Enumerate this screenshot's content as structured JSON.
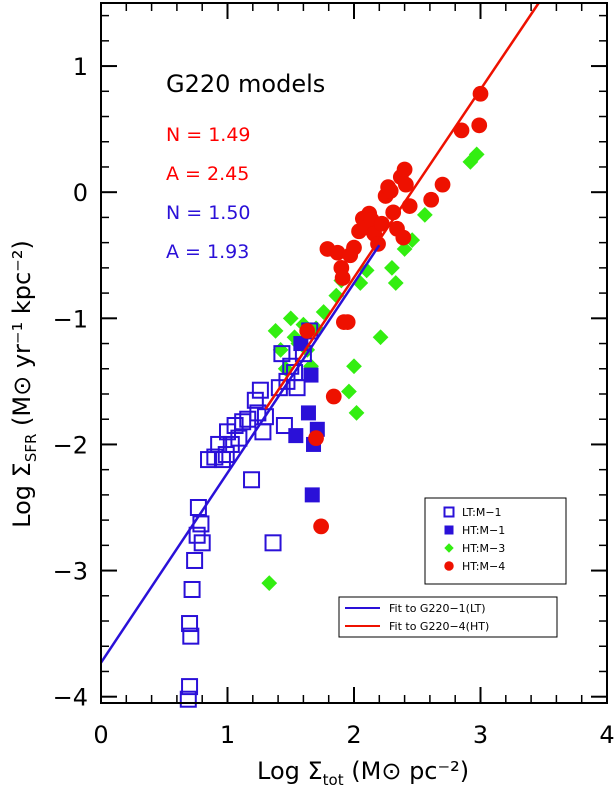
{
  "chart_data": {
    "type": "scatter",
    "title": "G220 models",
    "xlabel": {
      "prefix": "Log Σ",
      "sub": "tot",
      "unit": " (M⊙ pc⁻²)"
    },
    "ylabel": {
      "prefix": "Log Σ",
      "sub": "SFR",
      "unit": " (M⊙ yr⁻¹ kpc⁻²)"
    },
    "xlim": [
      0,
      4
    ],
    "ylim": [
      -4.05,
      1.5
    ],
    "x_ticks": [
      0,
      1,
      2,
      3,
      4
    ],
    "y_ticks": [
      -4,
      -3,
      -2,
      -1,
      0,
      1
    ],
    "x_tick_labels": [
      "0",
      "1",
      "2",
      "3",
      "4"
    ],
    "y_tick_labels": [
      "−4",
      "−3",
      "−2",
      "−1",
      "0",
      "1"
    ],
    "fit_params": [
      {
        "text": "N = 1.49",
        "color": "#ff0000"
      },
      {
        "text": "A = 2.45",
        "color": "#ff0000"
      },
      {
        "text": "N = 1.50",
        "color": "#2a10d8"
      },
      {
        "text": "A = 1.93",
        "color": "#2a10d8"
      }
    ],
    "legend_markers": [
      {
        "label": "LT:M−1",
        "marker": "open-square",
        "color": "#2a10d8"
      },
      {
        "label": "HT:M−1",
        "marker": "filled-square",
        "color": "#2a10d8"
      },
      {
        "label": "HT:M−3",
        "marker": "diamond",
        "color": "#33ee11"
      },
      {
        "label": "HT:M−4",
        "marker": "circle",
        "color": "#ee1100"
      }
    ],
    "legend_lines": [
      {
        "label": "Fit to G220−1(LT)",
        "color": "#2a10d8"
      },
      {
        "label": "Fit to G220−4(HT)",
        "color": "#ee1100"
      }
    ],
    "fits": [
      {
        "x": [
          0,
          2.2
        ],
        "y": [
          -3.73,
          -0.42
        ],
        "color": "#2a10d8"
      },
      {
        "x": [
          1.3,
          3.46
        ],
        "y": [
          -1.72,
          1.5
        ],
        "color": "#ee1100"
      }
    ],
    "series": [
      {
        "marker": "diamond",
        "color": "#33ee11",
        "points": [
          [
            1.33,
            -3.1
          ],
          [
            1.38,
            -1.1
          ],
          [
            1.42,
            -1.25
          ],
          [
            1.46,
            -1.4
          ],
          [
            1.5,
            -1.0
          ],
          [
            1.53,
            -1.15
          ],
          [
            1.56,
            -1.2
          ],
          [
            1.6,
            -1.05
          ],
          [
            1.63,
            -1.25
          ],
          [
            1.66,
            -1.38
          ],
          [
            1.7,
            -1.08
          ],
          [
            1.76,
            -0.95
          ],
          [
            1.86,
            -0.82
          ],
          [
            1.9,
            -0.7
          ],
          [
            1.96,
            -1.58
          ],
          [
            2.0,
            -1.38
          ],
          [
            2.02,
            -1.75
          ],
          [
            2.05,
            -0.72
          ],
          [
            2.1,
            -0.62
          ],
          [
            2.21,
            -1.15
          ],
          [
            2.3,
            -0.6
          ],
          [
            2.33,
            -0.72
          ],
          [
            2.4,
            -0.45
          ],
          [
            2.46,
            -0.38
          ],
          [
            2.56,
            -0.18
          ],
          [
            2.92,
            0.24
          ],
          [
            2.97,
            0.3
          ]
        ]
      },
      {
        "marker": "open-square",
        "color": "#2a10d8",
        "points": [
          [
            0.69,
            -4.02
          ],
          [
            0.7,
            -3.92
          ],
          [
            0.7,
            -3.42
          ],
          [
            0.71,
            -3.52
          ],
          [
            0.72,
            -3.15
          ],
          [
            0.74,
            -2.92
          ],
          [
            0.76,
            -2.72
          ],
          [
            0.77,
            -2.5
          ],
          [
            0.79,
            -2.63
          ],
          [
            0.8,
            -2.78
          ],
          [
            0.85,
            -2.12
          ],
          [
            0.9,
            -2.1
          ],
          [
            0.93,
            -2.0
          ],
          [
            0.96,
            -2.12
          ],
          [
            0.99,
            -2.08
          ],
          [
            1.0,
            -1.9
          ],
          [
            1.03,
            -2.0
          ],
          [
            1.06,
            -1.85
          ],
          [
            1.09,
            -1.95
          ],
          [
            1.12,
            -1.82
          ],
          [
            1.16,
            -1.8
          ],
          [
            1.19,
            -2.28
          ],
          [
            1.22,
            -1.65
          ],
          [
            1.24,
            -1.75
          ],
          [
            1.26,
            -1.57
          ],
          [
            1.28,
            -1.9
          ],
          [
            1.3,
            -1.78
          ],
          [
            1.36,
            -2.78
          ],
          [
            1.41,
            -1.55
          ],
          [
            1.43,
            -1.28
          ],
          [
            1.45,
            -1.85
          ],
          [
            1.47,
            -1.5
          ],
          [
            1.5,
            -1.38
          ],
          [
            1.53,
            -1.43
          ],
          [
            1.55,
            -1.55
          ],
          [
            1.6,
            -1.28
          ],
          [
            1.65,
            -1.1
          ]
        ]
      },
      {
        "marker": "filled-square",
        "color": "#2a10d8",
        "points": [
          [
            1.54,
            -1.93
          ],
          [
            1.58,
            -1.2
          ],
          [
            1.64,
            -1.75
          ],
          [
            1.66,
            -1.45
          ],
          [
            1.67,
            -2.4
          ],
          [
            1.68,
            -2.0
          ],
          [
            1.71,
            -1.88
          ]
        ]
      },
      {
        "marker": "circle",
        "color": "#ee1100",
        "points": [
          [
            1.63,
            -1.1
          ],
          [
            1.7,
            -1.95
          ],
          [
            1.74,
            -2.65
          ],
          [
            1.79,
            -0.45
          ],
          [
            1.84,
            -1.62
          ],
          [
            1.87,
            -0.48
          ],
          [
            1.9,
            -0.6
          ],
          [
            1.91,
            -0.68
          ],
          [
            1.92,
            -1.03
          ],
          [
            1.95,
            -1.03
          ],
          [
            1.97,
            -0.5
          ],
          [
            2.0,
            -0.44
          ],
          [
            2.04,
            -0.31
          ],
          [
            2.07,
            -0.21
          ],
          [
            2.1,
            -0.28
          ],
          [
            2.12,
            -0.17
          ],
          [
            2.14,
            -0.22
          ],
          [
            2.16,
            -0.33
          ],
          [
            2.19,
            -0.41
          ],
          [
            2.22,
            -0.25
          ],
          [
            2.25,
            -0.03
          ],
          [
            2.27,
            0.04
          ],
          [
            2.29,
            0.01
          ],
          [
            2.31,
            -0.16
          ],
          [
            2.34,
            -0.29
          ],
          [
            2.37,
            0.12
          ],
          [
            2.39,
            -0.36
          ],
          [
            2.4,
            0.18
          ],
          [
            2.41,
            0.06
          ],
          [
            2.44,
            -0.11
          ],
          [
            2.61,
            -0.06
          ],
          [
            2.7,
            0.06
          ],
          [
            2.85,
            0.49
          ],
          [
            2.99,
            0.53
          ],
          [
            3.0,
            0.78
          ]
        ]
      }
    ]
  }
}
